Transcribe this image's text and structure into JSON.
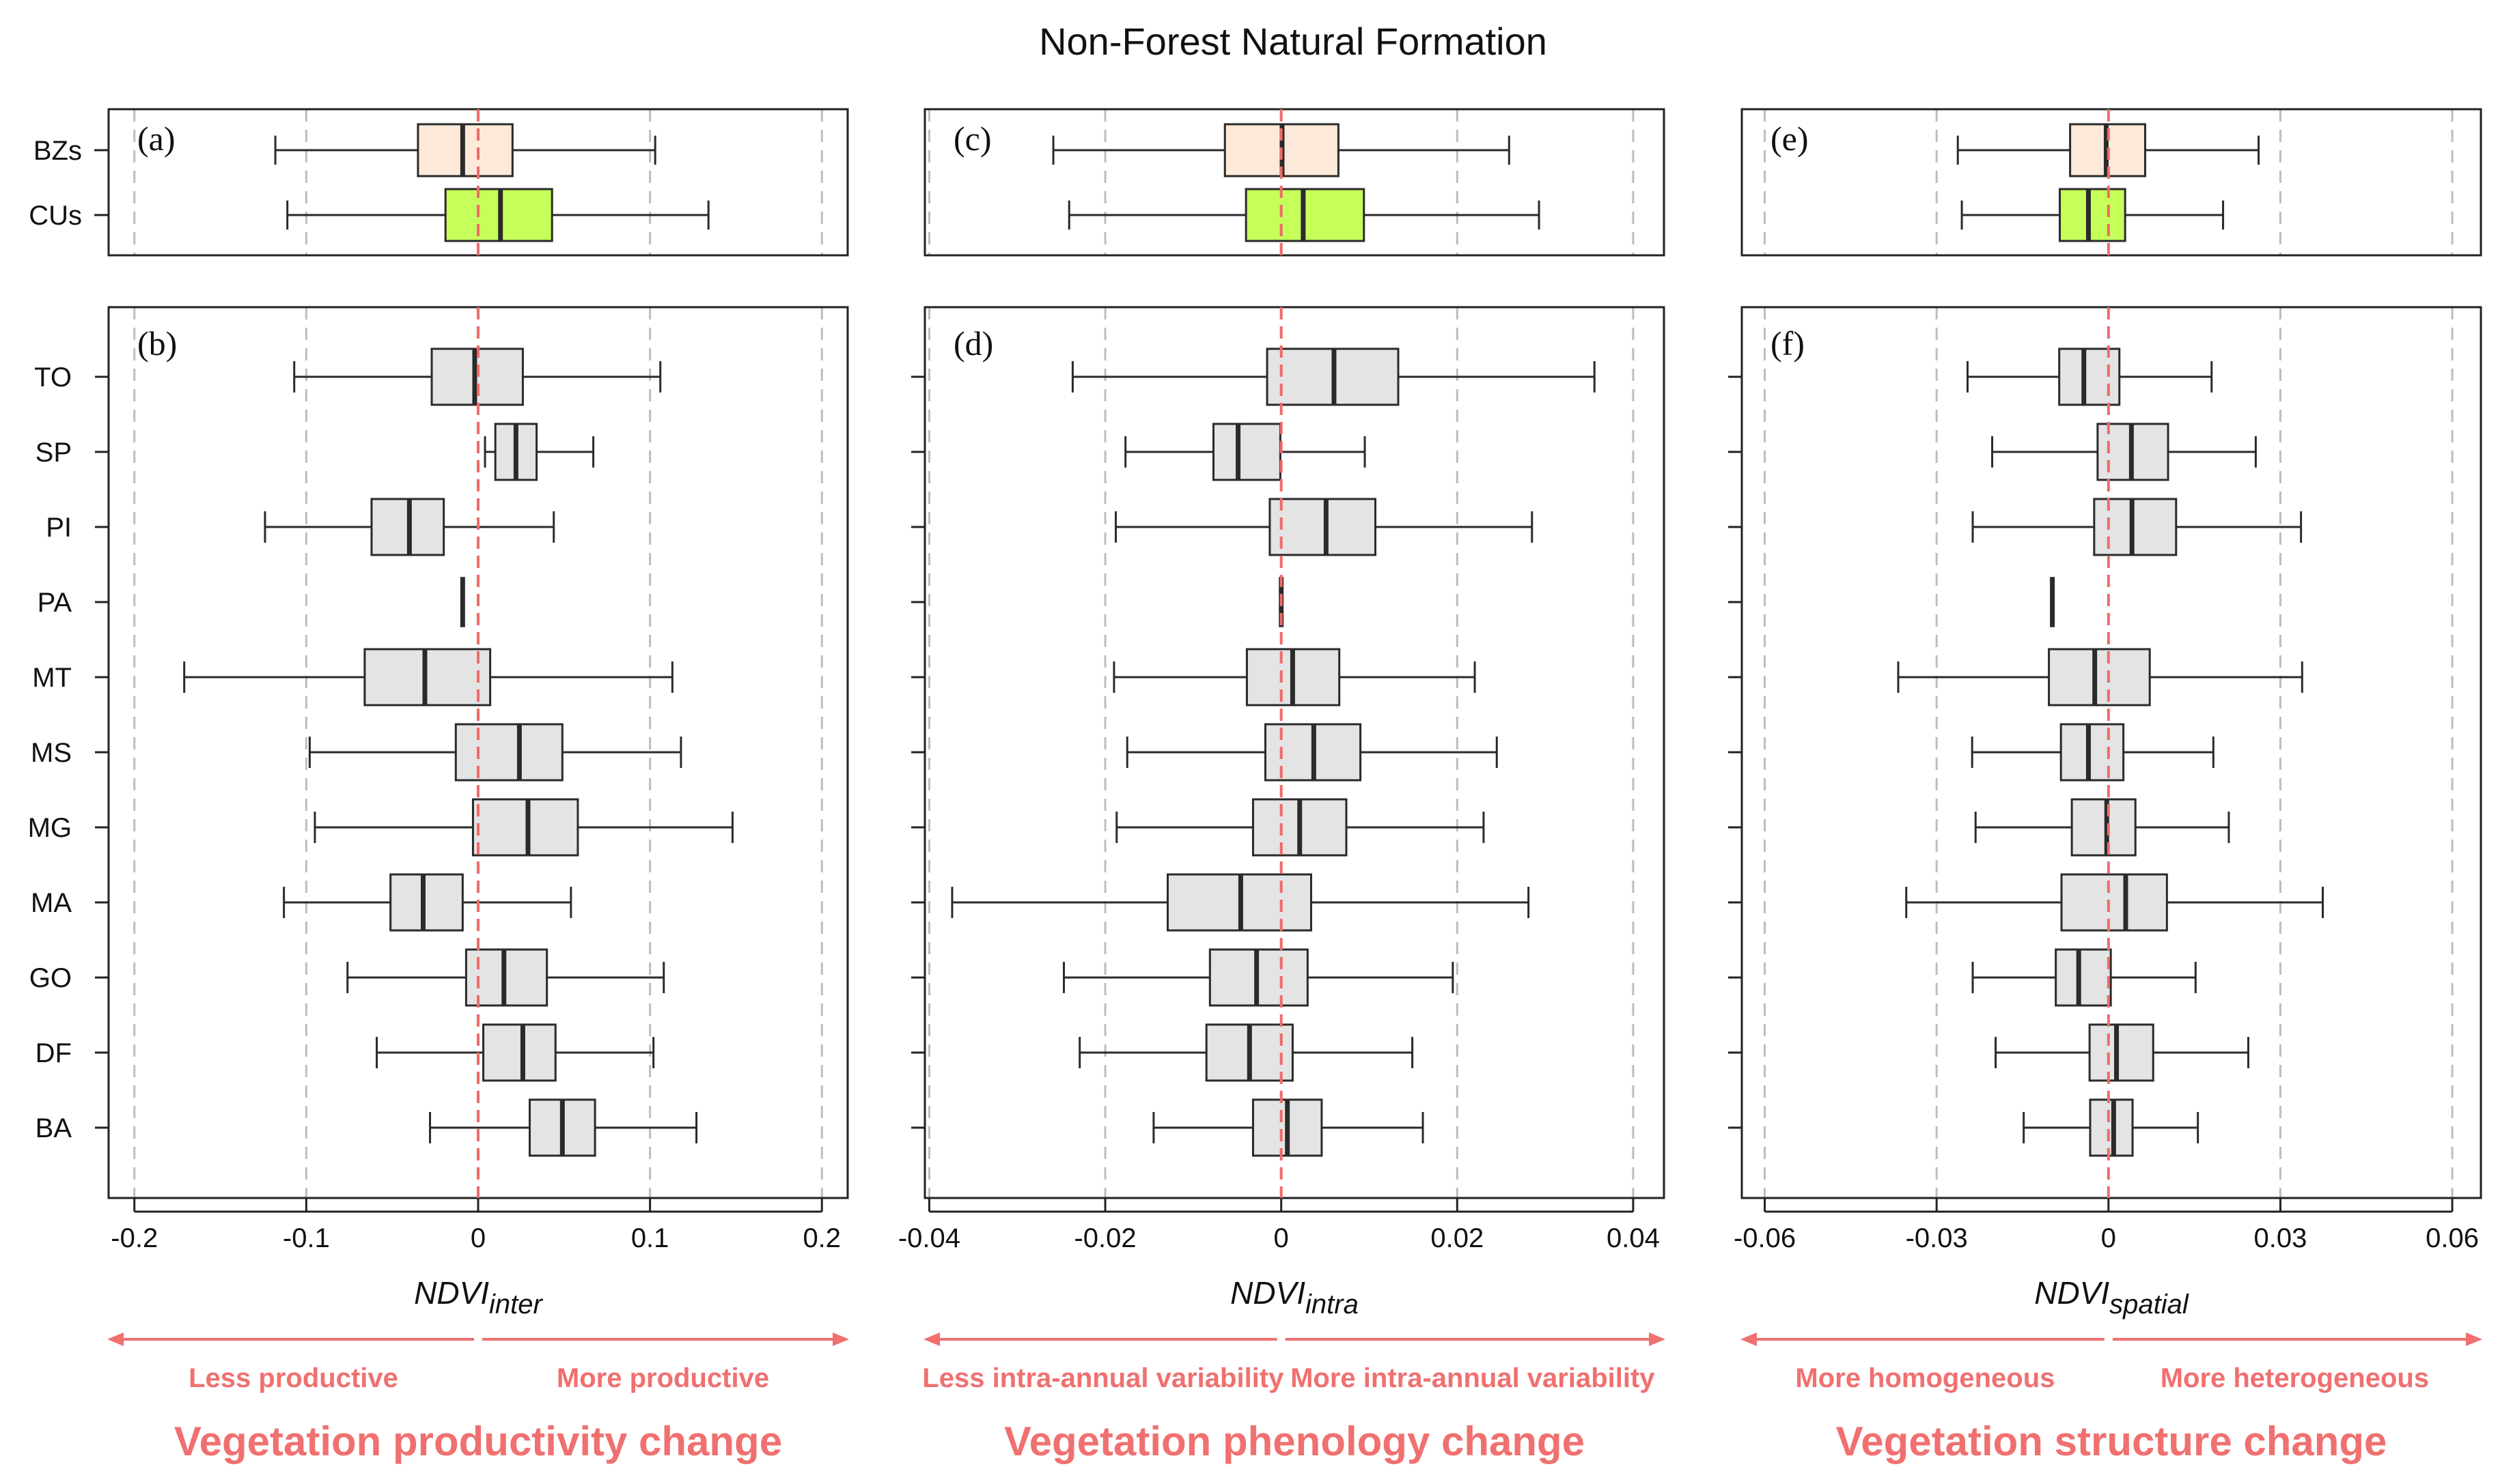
{
  "title": "Non-Forest Natural Formation",
  "colors": {
    "bz_fill": "#fde9d9",
    "cu_fill": "#c6ff5a",
    "region_fill": "#e4e4e4",
    "box_stroke": "#2a2a2a",
    "zero_line": "#f06a6a",
    "grid": "#bdbdbd",
    "annotation": "#f07070"
  },
  "chart_data": [
    {
      "type": "boxplot",
      "panel_top_label": "(a)",
      "panel_bottom_label": "(b)",
      "xlabel_main": "NDVI",
      "xlabel_sub": "inter",
      "xlim": [
        -0.215,
        0.215
      ],
      "ticks": [
        -0.2,
        -0.1,
        0,
        0.1,
        0.2
      ],
      "tick_labels": [
        "-0.2",
        "-0.1",
        "0",
        "0.1",
        "0.2"
      ],
      "arrow_left": "Less productive",
      "arrow_right": "More productive",
      "subtitle": "Vegetation productivity change",
      "groups": [
        {
          "label": "BZs",
          "fill": "bz",
          "min": -0.118,
          "q1": -0.035,
          "median": -0.009,
          "q3": 0.02,
          "max": 0.103
        },
        {
          "label": "CUs",
          "fill": "cu",
          "min": -0.111,
          "q1": -0.019,
          "median": 0.013,
          "q3": 0.043,
          "max": 0.134
        }
      ],
      "regions": [
        {
          "label": "TO",
          "min": -0.107,
          "q1": -0.027,
          "median": -0.002,
          "q3": 0.026,
          "max": 0.106
        },
        {
          "label": "SP",
          "min": 0.004,
          "q1": 0.01,
          "median": 0.022,
          "q3": 0.034,
          "max": 0.067
        },
        {
          "label": "PI",
          "min": -0.124,
          "q1": -0.062,
          "median": -0.04,
          "q3": -0.02,
          "max": 0.044
        },
        {
          "label": "PA",
          "min": -0.009,
          "q1": -0.009,
          "median": -0.009,
          "q3": -0.009,
          "max": -0.009
        },
        {
          "label": "MT",
          "min": -0.171,
          "q1": -0.066,
          "median": -0.031,
          "q3": 0.007,
          "max": 0.113
        },
        {
          "label": "MS",
          "min": -0.098,
          "q1": -0.013,
          "median": 0.024,
          "q3": 0.049,
          "max": 0.118
        },
        {
          "label": "MG",
          "min": -0.095,
          "q1": -0.003,
          "median": 0.029,
          "q3": 0.058,
          "max": 0.148
        },
        {
          "label": "MA",
          "min": -0.113,
          "q1": -0.051,
          "median": -0.032,
          "q3": -0.009,
          "max": 0.054
        },
        {
          "label": "GO",
          "min": -0.076,
          "q1": -0.007,
          "median": 0.015,
          "q3": 0.04,
          "max": 0.108
        },
        {
          "label": "DF",
          "min": -0.059,
          "q1": 0.003,
          "median": 0.026,
          "q3": 0.045,
          "max": 0.102
        },
        {
          "label": "BA",
          "min": -0.028,
          "q1": 0.03,
          "median": 0.049,
          "q3": 0.068,
          "max": 0.127
        }
      ]
    },
    {
      "type": "boxplot",
      "panel_top_label": "(c)",
      "panel_bottom_label": "(d)",
      "xlabel_main": "NDVI",
      "xlabel_sub": "intra",
      "xlim": [
        -0.0405,
        0.0435
      ],
      "ticks": [
        -0.04,
        -0.02,
        0,
        0.02,
        0.04
      ],
      "tick_labels": [
        "-0.04",
        "-0.02",
        "0",
        "0.02",
        "0.04"
      ],
      "arrow_left": "Less intra-annual variability",
      "arrow_right": "More intra-annual variability",
      "subtitle": "Vegetation phenology change",
      "groups": [
        {
          "label": "BZs",
          "fill": "bz",
          "min": -0.0259,
          "q1": -0.0064,
          "median": 0.0001,
          "q3": 0.0065,
          "max": 0.0259
        },
        {
          "label": "CUs",
          "fill": "cu",
          "min": -0.0241,
          "q1": -0.004,
          "median": 0.0025,
          "q3": 0.0094,
          "max": 0.0293
        }
      ],
      "regions": [
        {
          "label": "TO",
          "min": -0.0237,
          "q1": -0.0016,
          "median": 0.006,
          "q3": 0.0133,
          "max": 0.0356
        },
        {
          "label": "SP",
          "min": -0.0177,
          "q1": -0.0077,
          "median": -0.0049,
          "q3": -0.0001,
          "max": 0.0095
        },
        {
          "label": "PI",
          "min": -0.0188,
          "q1": -0.0013,
          "median": 0.0051,
          "q3": 0.0107,
          "max": 0.0285
        },
        {
          "label": "PA",
          "min": 0.0,
          "q1": 0.0,
          "median": 0.0,
          "q3": 0.0,
          "max": 0.0
        },
        {
          "label": "MT",
          "min": -0.019,
          "q1": -0.0039,
          "median": 0.0013,
          "q3": 0.0066,
          "max": 0.022
        },
        {
          "label": "MS",
          "min": -0.0175,
          "q1": -0.0018,
          "median": 0.0037,
          "q3": 0.009,
          "max": 0.0245
        },
        {
          "label": "MG",
          "min": -0.0187,
          "q1": -0.0032,
          "median": 0.0021,
          "q3": 0.0074,
          "max": 0.023
        },
        {
          "label": "MA",
          "min": -0.0374,
          "q1": -0.0129,
          "median": -0.0046,
          "q3": 0.0034,
          "max": 0.0281
        },
        {
          "label": "GO",
          "min": -0.0247,
          "q1": -0.0081,
          "median": -0.0028,
          "q3": 0.003,
          "max": 0.0195
        },
        {
          "label": "DF",
          "min": -0.0229,
          "q1": -0.0085,
          "median": -0.0036,
          "q3": 0.0013,
          "max": 0.0149
        },
        {
          "label": "BA",
          "min": -0.0145,
          "q1": -0.0032,
          "median": 0.0007,
          "q3": 0.0046,
          "max": 0.0161
        }
      ]
    },
    {
      "type": "boxplot",
      "panel_top_label": "(e)",
      "panel_bottom_label": "(f)",
      "xlabel_main": "NDVI",
      "xlabel_sub": "spatial",
      "xlim": [
        -0.064,
        0.065
      ],
      "ticks": [
        -0.06,
        -0.03,
        0,
        0.03,
        0.06
      ],
      "tick_labels": [
        "-0.06",
        "-0.03",
        "0",
        "0.03",
        "0.06"
      ],
      "arrow_left": "More homogeneous",
      "arrow_right": "More heterogeneous",
      "subtitle": "Vegetation structure change",
      "groups": [
        {
          "label": "BZs",
          "fill": "bz",
          "min": -0.0263,
          "q1": -0.0067,
          "median": -0.0004,
          "q3": 0.0064,
          "max": 0.0262
        },
        {
          "label": "CUs",
          "fill": "cu",
          "min": -0.0256,
          "q1": -0.0085,
          "median": -0.0035,
          "q3": 0.0029,
          "max": 0.02
        }
      ],
      "regions": [
        {
          "label": "TO",
          "min": -0.0246,
          "q1": -0.0086,
          "median": -0.0043,
          "q3": 0.0019,
          "max": 0.018
        },
        {
          "label": "SP",
          "min": -0.0203,
          "q1": -0.0019,
          "median": 0.004,
          "q3": 0.0104,
          "max": 0.0257
        },
        {
          "label": "PI",
          "min": -0.0237,
          "q1": -0.0025,
          "median": 0.0041,
          "q3": 0.0118,
          "max": 0.0336
        },
        {
          "label": "PA",
          "min": -0.0098,
          "q1": -0.0098,
          "median": -0.0098,
          "q3": -0.0098,
          "max": -0.0098
        },
        {
          "label": "MT",
          "min": -0.0367,
          "q1": -0.0104,
          "median": -0.0024,
          "q3": 0.0072,
          "max": 0.0338
        },
        {
          "label": "MS",
          "min": -0.0238,
          "q1": -0.0083,
          "median": -0.0035,
          "q3": 0.0026,
          "max": 0.0183
        },
        {
          "label": "MG",
          "min": -0.0232,
          "q1": -0.0064,
          "median": -0.0003,
          "q3": 0.0047,
          "max": 0.021
        },
        {
          "label": "MA",
          "min": -0.0353,
          "q1": -0.0082,
          "median": 0.003,
          "q3": 0.0102,
          "max": 0.0374
        },
        {
          "label": "GO",
          "min": -0.0237,
          "q1": -0.0092,
          "median": -0.0052,
          "q3": 0.0004,
          "max": 0.0152
        },
        {
          "label": "DF",
          "min": -0.0197,
          "q1": -0.0033,
          "median": 0.0014,
          "q3": 0.0078,
          "max": 0.0244
        },
        {
          "label": "BA",
          "min": -0.0148,
          "q1": -0.0032,
          "median": 0.0009,
          "q3": 0.0042,
          "max": 0.0156
        }
      ]
    }
  ]
}
